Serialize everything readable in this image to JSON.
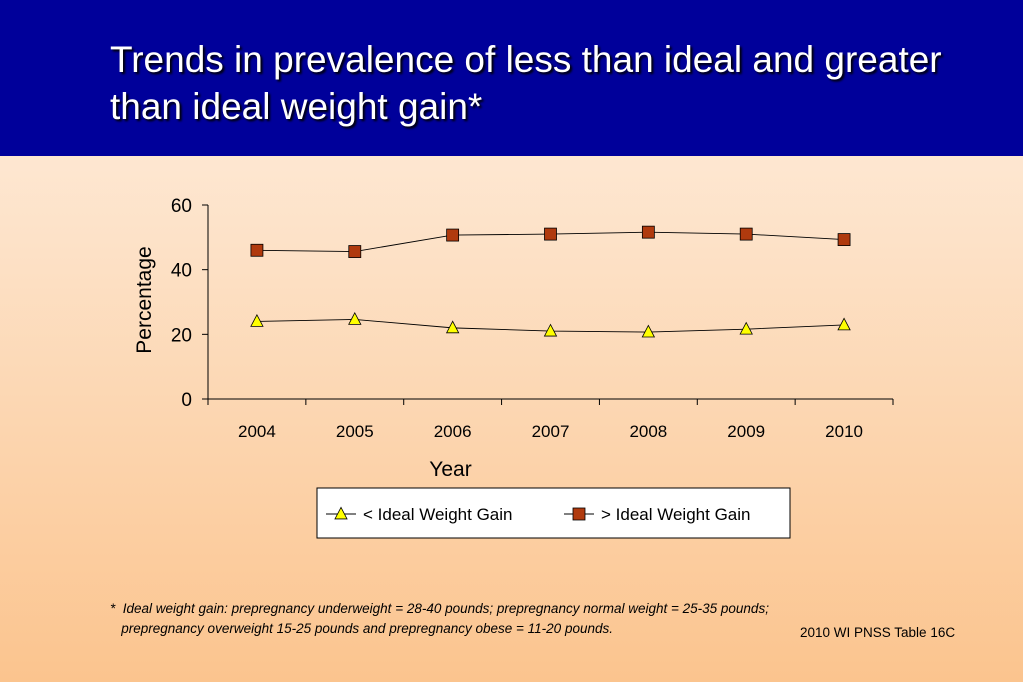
{
  "slide": {
    "title": "Trends in prevalence of less than ideal and greater than ideal weight gain*",
    "footnote_line1": "*  Ideal weight gain: prepregnancy underweight = 28-40 pounds; prepregnancy normal weight = 25-35 pounds;",
    "footnote_line2": "   prepregnancy overweight 15-25 pounds and prepregnancy obese = 11-20 pounds.",
    "source": "2010 WI PNSS Table 16C"
  },
  "chart_data": {
    "type": "line",
    "title": "",
    "xlabel": "Year",
    "ylabel": "Percentage",
    "categories": [
      "2004",
      "2005",
      "2006",
      "2007",
      "2008",
      "2009",
      "2010"
    ],
    "ylim": [
      0,
      60
    ],
    "yticks": [
      0,
      20,
      40,
      60
    ],
    "grid": false,
    "legend_position": "bottom",
    "series": [
      {
        "name": "< Ideal Weight Gain",
        "values": [
          24.0,
          24.6,
          22.0,
          21.0,
          20.7,
          21.6,
          22.9
        ],
        "marker": "triangle",
        "marker_color": "#ffff00",
        "line_color": "#000000"
      },
      {
        "name": "> Ideal Weight Gain",
        "values": [
          46.0,
          45.6,
          50.7,
          51.0,
          51.6,
          51.0,
          49.3
        ],
        "marker": "square",
        "marker_color": "#b03a0e",
        "line_color": "#000000"
      }
    ]
  }
}
